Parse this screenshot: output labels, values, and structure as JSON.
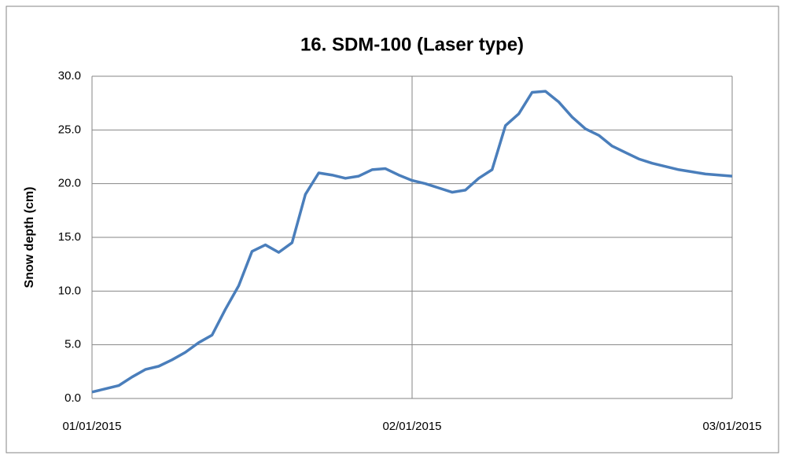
{
  "chart_data": {
    "type": "line",
    "title": "16. SDM-100 (Laser type)",
    "y_label": "Snow depth (cm)",
    "categories": [
      "01/01/2015",
      null,
      null,
      null,
      null,
      null,
      null,
      null,
      null,
      null,
      null,
      null,
      null,
      null,
      null,
      null,
      null,
      null,
      null,
      null,
      null,
      null,
      null,
      null,
      "02/01/2015",
      null,
      null,
      null,
      null,
      null,
      null,
      null,
      null,
      null,
      null,
      null,
      null,
      null,
      null,
      null,
      null,
      null,
      null,
      null,
      null,
      null,
      null,
      null,
      "03/01/2015"
    ],
    "series": [
      {
        "name": "Snow depth",
        "color": "#4a7ebb",
        "values": [
          0.6,
          0.9,
          1.2,
          2.0,
          2.7,
          3.0,
          3.6,
          4.3,
          5.2,
          5.9,
          8.3,
          10.5,
          13.7,
          14.3,
          13.6,
          14.5,
          19.0,
          21.0,
          20.8,
          20.5,
          20.7,
          21.3,
          21.4,
          20.8,
          20.3,
          20.0,
          19.6,
          19.2,
          19.4,
          20.5,
          21.3,
          25.4,
          26.5,
          28.5,
          28.6,
          27.6,
          26.2,
          25.1,
          24.5,
          23.5,
          22.9,
          22.3,
          21.9,
          21.6,
          21.3,
          21.1,
          20.9,
          20.8,
          20.7
        ]
      }
    ],
    "ylim": [
      0,
      30
    ],
    "yticks": [
      {
        "value": 0,
        "label": "0.0"
      },
      {
        "value": 5,
        "label": "5.0"
      },
      {
        "value": 10,
        "label": "10.0"
      },
      {
        "value": 15,
        "label": "15.0"
      },
      {
        "value": 20,
        "label": "20.0"
      },
      {
        "value": 25,
        "label": "25.0"
      },
      {
        "value": 30,
        "label": "30.0"
      }
    ],
    "grid": true
  }
}
